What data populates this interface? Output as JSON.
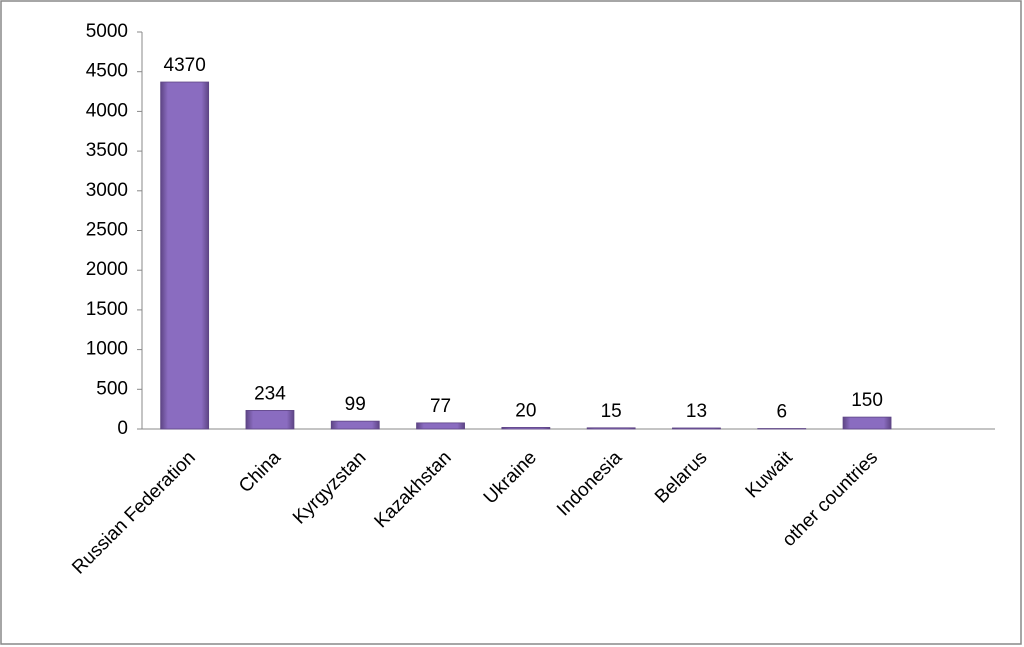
{
  "chart_data": {
    "type": "bar",
    "categories": [
      "Russian Federation",
      "China",
      "Kyrgyzstan",
      "Kazakhstan",
      "Ukraine",
      "Indonesia",
      "Belarus",
      "Kuwait",
      "other countries",
      null
    ],
    "values": [
      4370,
      234,
      99,
      77,
      20,
      15,
      13,
      6,
      150,
      null
    ],
    "color": "#8064a2",
    "ylim": [
      0,
      5000
    ],
    "yticks": [
      0,
      500,
      1000,
      1500,
      2000,
      2500,
      3000,
      3500,
      4000,
      4500,
      5000
    ],
    "grid": false
  }
}
